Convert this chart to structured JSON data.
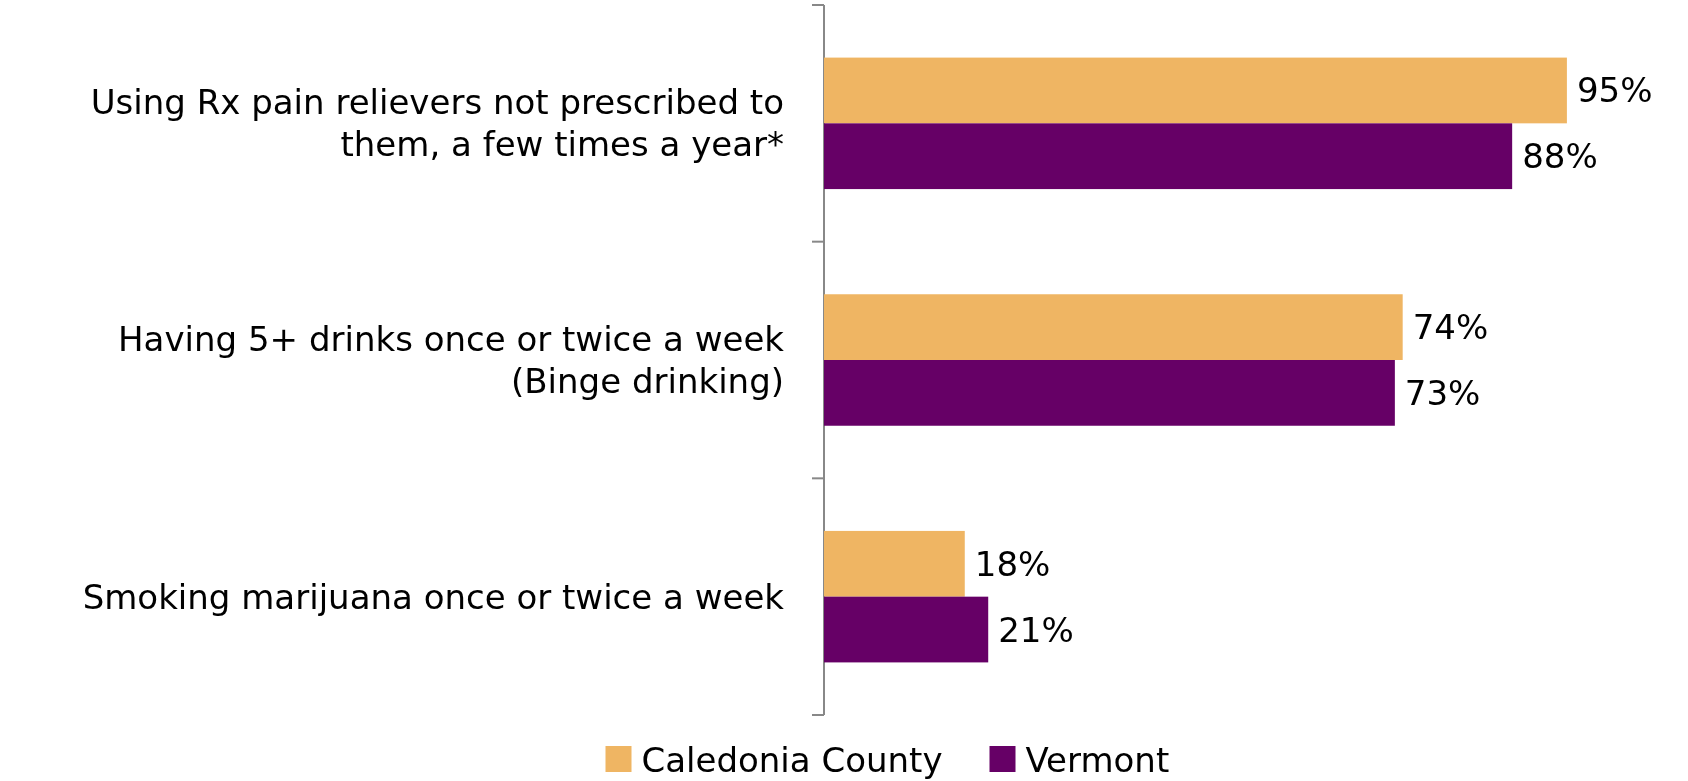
{
  "chart_data": {
    "type": "bar",
    "orientation": "horizontal",
    "categories": [
      "Using Rx pain relievers not prescribed to them, a few times a year*",
      "Having 5+ drinks once or twice a week (Binge drinking)",
      "Smoking marijuana once or twice a week"
    ],
    "series": [
      {
        "name": "Caledonia County",
        "color": "#efb563",
        "values": [
          95,
          74,
          18
        ],
        "value_labels": [
          "95%",
          "74%",
          "18%"
        ]
      },
      {
        "name": "Vermont",
        "color": "#660066",
        "values": [
          88,
          73,
          21
        ],
        "value_labels": [
          "88%",
          "73%",
          "21%"
        ]
      }
    ],
    "legend": "bottom"
  }
}
